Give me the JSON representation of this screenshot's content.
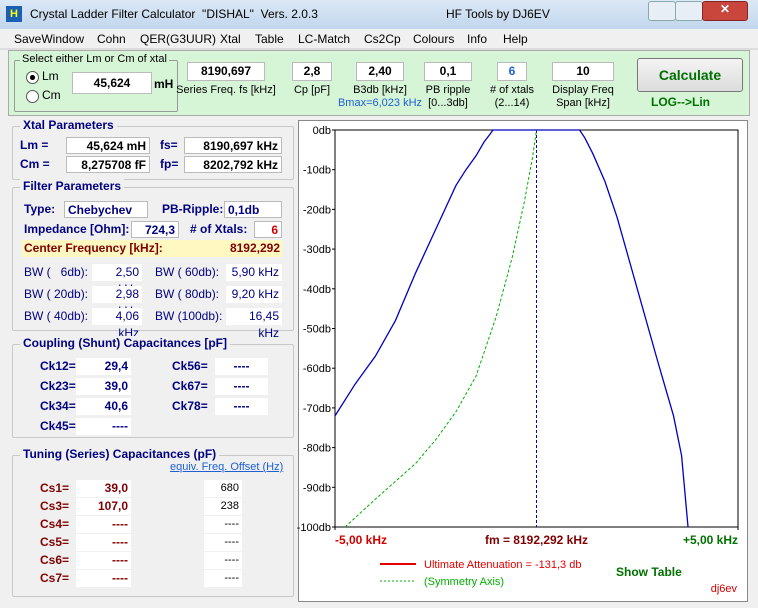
{
  "window": {
    "title": "Crystal Ladder Filter Calculator  \"DISHAL\"  Vers. 2.0.3",
    "right_title": "HF Tools by DJ6EV",
    "icon": "H"
  },
  "menu": [
    "SaveWindow",
    "Cohn",
    "QER(G3UUR)",
    "Xtal",
    "Table",
    "LC-Match",
    "Cs2Cp",
    "Colours",
    "Info",
    "Help"
  ],
  "inputs": {
    "xtal_group": {
      "label": "Select either Lm or Cm of xtal",
      "options": [
        "Lm",
        "Cm"
      ],
      "value": "45,624",
      "unit": "mH"
    },
    "fields": [
      {
        "value": "8190,697",
        "label": [
          "Series Freq. fs [kHz]"
        ]
      },
      {
        "value": "2,8",
        "label": [
          "Cp [pF]"
        ]
      },
      {
        "value": "2,40",
        "label": [
          "B3db [kHz]",
          "Bmax=6,023 kHz"
        ]
      },
      {
        "value": "0,1",
        "label": [
          "PB ripple",
          "[0...3db]"
        ]
      },
      {
        "value": "6",
        "label": [
          "# of xtals",
          "(2...14)"
        ]
      },
      {
        "value": "10",
        "label": [
          "Display Freq",
          "Span [kHz]"
        ]
      }
    ],
    "button": "Calculate",
    "toggle": "LOG-->Lin"
  },
  "xtal_parameters": {
    "title": "Xtal Parameters",
    "rows": [
      [
        "Lm =",
        "45,624  mH",
        "fs=",
        "8190,697  kHz"
      ],
      [
        "Cm =",
        "8,275708  fF",
        "fp=",
        "8202,792  kHz"
      ]
    ]
  },
  "filter_parameters": {
    "title": "Filter Parameters",
    "type": [
      "Type:",
      "Chebychev"
    ],
    "ripple": [
      "PB-Ripple:",
      "0,1db"
    ],
    "impedance": [
      "Impedance [Ohm]:",
      "724,3"
    ],
    "xtals": [
      "# of Xtals:",
      "6"
    ],
    "center": [
      "Center Frequency [kHz]:",
      "8192,292"
    ],
    "bandwidths": [
      [
        "BW (   6db):",
        "2,50 kHz",
        "BW ( 60db):",
        "5,90 kHz"
      ],
      [
        "BW ( 20db):",
        "2,98 kHz",
        "BW ( 80db):",
        "9,20 kHz"
      ],
      [
        "BW ( 40db):",
        "4,06 kHz",
        "BW (100db):",
        "16,45 kHz"
      ]
    ]
  },
  "coupling": {
    "title": "Coupling (Shunt) Capacitances [pF]",
    "rows": [
      [
        "Ck12=",
        "29,4",
        "Ck56=",
        "----"
      ],
      [
        "Ck23=",
        "39,0",
        "Ck67=",
        "----"
      ],
      [
        "Ck34=",
        "40,6",
        "Ck78=",
        "----"
      ],
      [
        "Ck45=",
        "----"
      ]
    ]
  },
  "tuning": {
    "title": "Tuning (Series) Capacitances (pF)",
    "header": "equiv. Freq. Offset (Hz)",
    "rows": [
      [
        "Cs1=",
        "39,0",
        "680"
      ],
      [
        "Cs3=",
        "107,0",
        "238"
      ],
      [
        "Cs4=",
        "----",
        "----"
      ],
      [
        "Cs5=",
        "----",
        "----"
      ],
      [
        "Cs6=",
        "----",
        "----"
      ],
      [
        "Cs7=",
        "----",
        "----"
      ]
    ]
  },
  "chart_data": {
    "type": "line",
    "xlim": [
      -5,
      5
    ],
    "ylim": [
      -100,
      0
    ],
    "xticks": [
      {
        "value": -5,
        "label": "-5,00 kHz"
      },
      {
        "value": 0,
        "label": "fm = 8192,292 kHz"
      },
      {
        "value": 5,
        "label": "+5,00 kHz"
      }
    ],
    "yticks": [
      {
        "value": 0,
        "label": "0db"
      },
      {
        "value": -10,
        "label": "-10db"
      },
      {
        "value": -20,
        "label": "-20db"
      },
      {
        "value": -30,
        "label": "-30db"
      },
      {
        "value": -40,
        "label": "-40db"
      },
      {
        "value": -50,
        "label": "-50db"
      },
      {
        "value": -60,
        "label": "-60db"
      },
      {
        "value": -70,
        "label": "-70db"
      },
      {
        "value": -80,
        "label": "-80db"
      },
      {
        "value": -90,
        "label": "-90db"
      },
      {
        "value": -100,
        "label": "-100db"
      }
    ],
    "series": [
      {
        "color": "#0000c0",
        "x": [
          -5,
          -4.5,
          -4,
          -3.5,
          -3,
          -2.5,
          -2,
          -1.75,
          -1.5,
          -1.3,
          -1.15,
          -1.08,
          1.07,
          1.2,
          1.4,
          1.7,
          2,
          2.5,
          3,
          3.4,
          3.6,
          3.76
        ],
        "values": [
          -72,
          -64,
          -57,
          -48,
          -36,
          -25,
          -14,
          -10,
          -6.5,
          -3,
          -1,
          0,
          0,
          -2,
          -6,
          -13,
          -22,
          -40,
          -58,
          -72,
          -82,
          -100
        ]
      },
      {
        "color": "#00b000",
        "dashed": true,
        "x": [
          -4.75,
          -4,
          -3,
          -2.5,
          -2,
          -1.5,
          -1,
          -0.6,
          -0.3,
          -0.1,
          0
        ],
        "values": [
          -100,
          -93,
          -84,
          -78,
          -71,
          -62,
          -47,
          -32,
          -18,
          -7,
          0
        ]
      }
    ],
    "legend": [
      {
        "label": "Ultimate Attenuation =  -131,3 db",
        "color": "#e00000"
      },
      {
        "label": "(Symmetry Axis)",
        "color": "#00b000"
      }
    ],
    "button": "Show Table",
    "signature": "dj6ev"
  }
}
